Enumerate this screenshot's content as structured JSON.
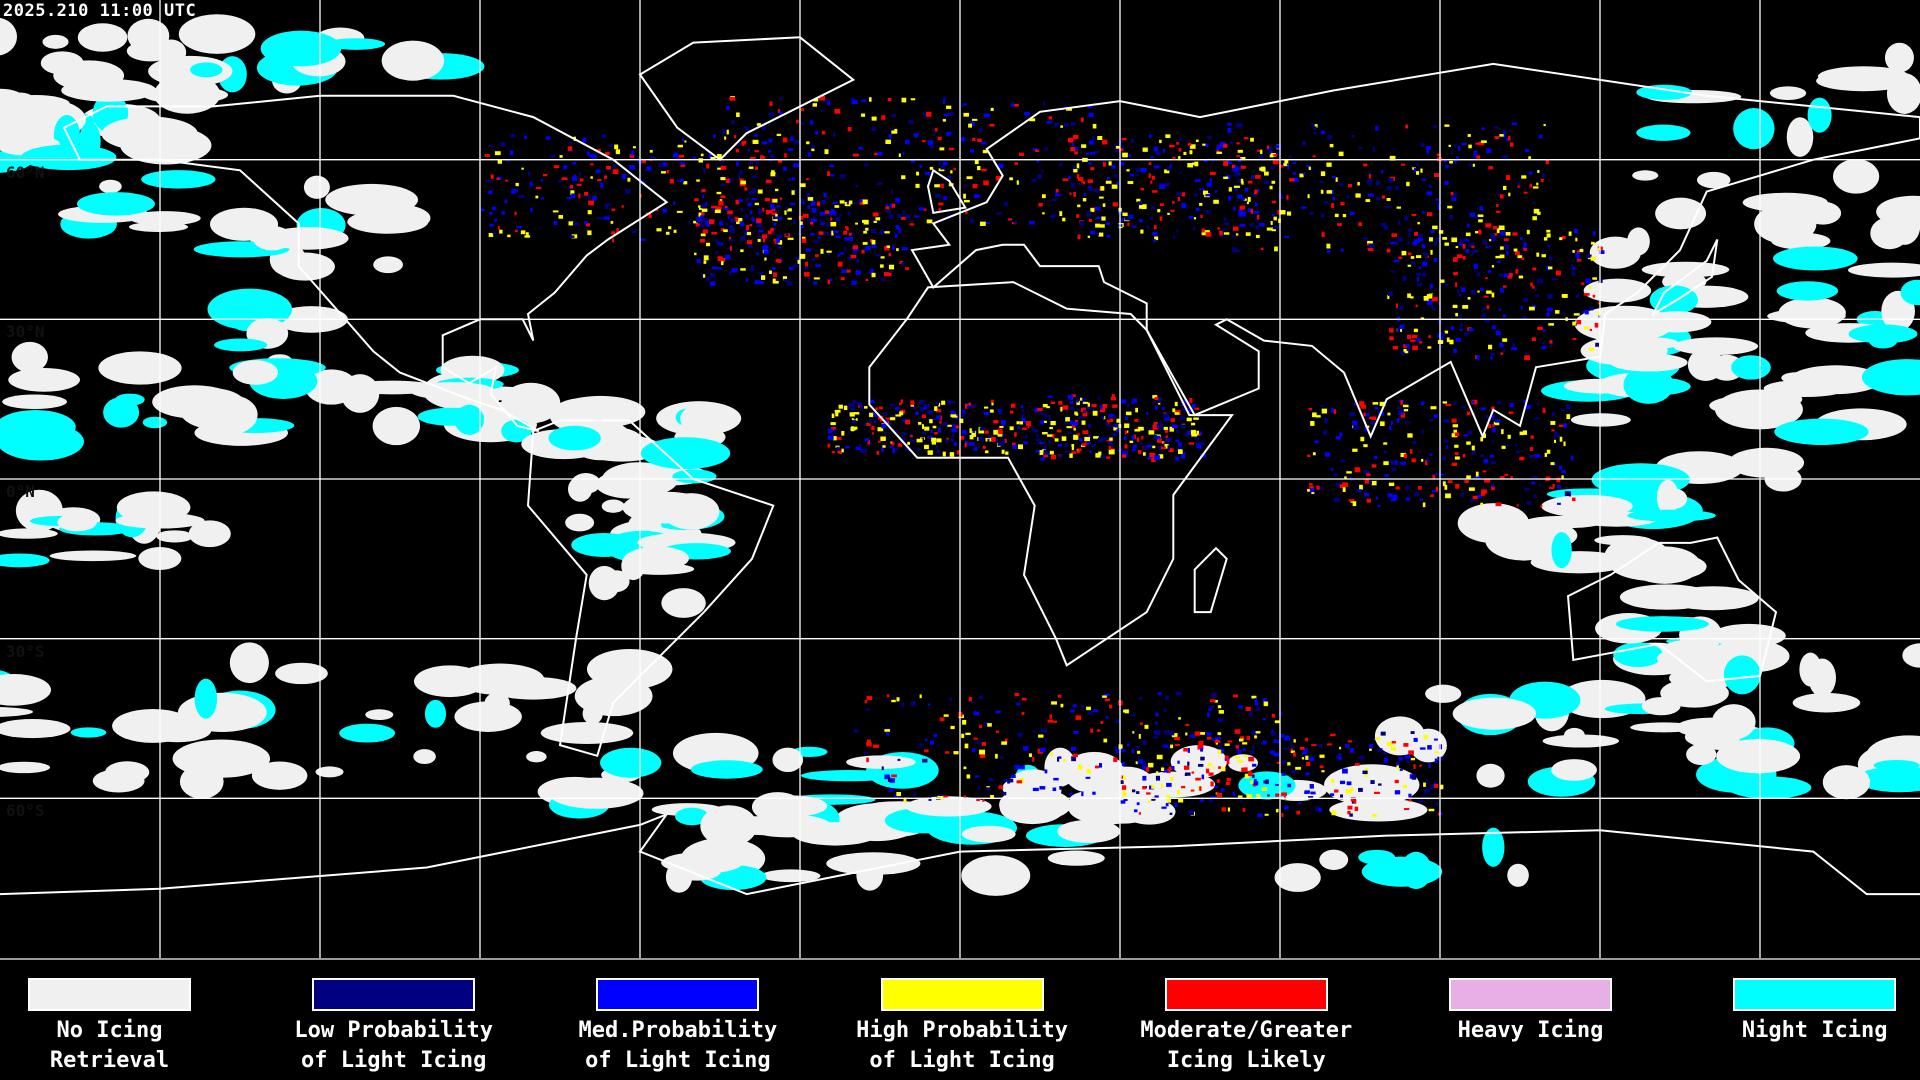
{
  "title": "2025.210 11:00 UTC",
  "map": {
    "projection": "equirectangular",
    "lon_range": [
      -180,
      180
    ],
    "lat_range": [
      -90,
      90
    ],
    "grid_spacing_deg": 30,
    "lat_labels": [
      {
        "lat": 60,
        "text": "60°N"
      },
      {
        "lat": 30,
        "text": "30°N"
      },
      {
        "lat": 0,
        "text": "0°N"
      },
      {
        "lat": -30,
        "text": "30°S"
      },
      {
        "lat": -60,
        "text": "60°S"
      }
    ],
    "background_color": "#000000",
    "coastline_color": "#ffffff",
    "grid_color": "#ffffff"
  },
  "legend": [
    {
      "line1": "No Icing",
      "line2": "Retrieval",
      "color": "#f0f0f0"
    },
    {
      "line1": "Low Probability",
      "line2": "of Light Icing",
      "color": "#000080"
    },
    {
      "line1": "Med.Probability",
      "line2": "of Light Icing",
      "color": "#0000ff"
    },
    {
      "line1": "High Probability",
      "line2": "of Light Icing",
      "color": "#ffff00"
    },
    {
      "line1": "Moderate/Greater",
      "line2": "Icing Likely",
      "color": "#ff0000"
    },
    {
      "line1": "Heavy Icing",
      "line2": "",
      "color": "#e8aee6"
    },
    {
      "line1": "Night Icing",
      "line2": "",
      "color": "#00ffff"
    }
  ]
}
